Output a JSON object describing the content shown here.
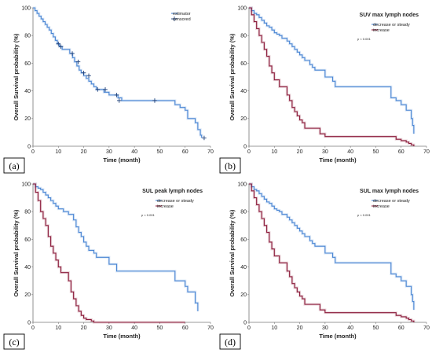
{
  "chart_data": [
    {
      "type": "line",
      "panel_label": "(a)",
      "title": "",
      "p_value": "",
      "xlabel": "Time (month)",
      "ylabel": "Overall Survival probability (%)",
      "xlim": [
        0,
        70
      ],
      "ylim": [
        0,
        100
      ],
      "xticks": [
        0,
        10,
        20,
        30,
        40,
        50,
        60,
        70
      ],
      "yticks": [
        0,
        20,
        40,
        60,
        80,
        100
      ],
      "legend": [
        "estimator",
        "censored"
      ],
      "legend_position": "top-right",
      "grid": false,
      "series": [
        {
          "name": "estimator",
          "color": "#4a86d4",
          "x": [
            0,
            0.8,
            1.6,
            2.4,
            3.2,
            4,
            4.8,
            5.6,
            6.4,
            7.2,
            8,
            8.8,
            9.6,
            10.4,
            11.5,
            14.5,
            15.6,
            16.4,
            17.3,
            18.2,
            19,
            20,
            21,
            22,
            23,
            24,
            25,
            26.5,
            28,
            30,
            33.5,
            35,
            55,
            56,
            58,
            60,
            61,
            63,
            64,
            65,
            66,
            66.5
          ],
          "y": [
            100,
            98,
            96,
            94,
            92,
            90,
            88,
            86,
            84,
            81.5,
            79,
            76.5,
            74,
            72,
            70,
            67,
            64,
            61,
            58,
            55,
            53,
            51,
            49,
            47,
            45,
            43,
            41,
            41,
            39,
            37,
            35,
            33,
            33,
            30,
            28,
            26,
            20,
            20,
            17,
            12,
            8,
            6
          ]
        }
      ],
      "censored": {
        "x": [
          10,
          11,
          15.5,
          17.8,
          20,
          22,
          25.5,
          28.5,
          33,
          34,
          48,
          67.5
        ],
        "y": [
          74,
          72,
          67,
          61,
          53,
          51,
          41,
          41,
          37,
          33,
          33,
          6
        ]
      }
    },
    {
      "type": "line",
      "panel_label": "(b)",
      "title": "SUV max lymph nodes",
      "p_value": "p < 0.001",
      "xlabel": "Time (month)",
      "ylabel": "Overall Survival probability (%)",
      "xlim": [
        0,
        70
      ],
      "ylim": [
        0,
        100
      ],
      "xticks": [
        0,
        10,
        20,
        30,
        40,
        50,
        60,
        70
      ],
      "yticks": [
        0,
        20,
        40,
        60,
        80,
        100
      ],
      "legend": [
        "decrease or steady",
        "increase"
      ],
      "legend_position": "top-right",
      "grid": false,
      "series": [
        {
          "name": "decrease or steady",
          "color": "#4a86d4",
          "x": [
            0,
            1,
            2,
            3,
            4,
            5,
            6,
            7,
            8,
            9,
            10,
            11,
            12,
            13,
            15,
            16,
            17,
            18,
            19,
            20,
            21,
            22,
            24,
            25,
            26,
            28,
            30,
            33,
            34,
            55,
            56,
            58,
            60,
            62,
            63,
            64,
            64.5,
            65
          ],
          "y": [
            100,
            98,
            96,
            95,
            93,
            91,
            89,
            87,
            86,
            84,
            82,
            81,
            80,
            78,
            76,
            74,
            72,
            70,
            68,
            66,
            64,
            62,
            59,
            57,
            55,
            55,
            50,
            47,
            43,
            43,
            35,
            33,
            30,
            26,
            26,
            20,
            15,
            9
          ]
        },
        {
          "name": "increase",
          "color": "#8b1a3a",
          "x": [
            0,
            1,
            2,
            3,
            4,
            5,
            6,
            7,
            8,
            9,
            10,
            11,
            12,
            13,
            15,
            16,
            17,
            18,
            19,
            20,
            21,
            22,
            24,
            28,
            30,
            56,
            58,
            60,
            62,
            63,
            64,
            65
          ],
          "y": [
            100,
            95,
            90,
            85,
            80,
            75,
            70,
            65,
            58,
            53,
            48,
            48,
            43,
            43,
            37,
            33,
            28,
            25,
            22,
            19,
            17,
            13,
            13,
            9,
            7,
            7,
            5,
            4,
            3,
            2,
            1,
            0
          ]
        }
      ],
      "censored": {
        "x": [],
        "y": []
      }
    },
    {
      "type": "line",
      "panel_label": "(c)",
      "title": "SUL peak lymph nodes",
      "p_value": "p < 0.001",
      "xlabel": "Time (month)",
      "ylabel": "Overall Survival probability (%)",
      "xlim": [
        0,
        70
      ],
      "ylim": [
        0,
        100
      ],
      "xticks": [
        0,
        10,
        20,
        30,
        40,
        50,
        60,
        70
      ],
      "yticks": [
        0,
        20,
        40,
        60,
        80,
        100
      ],
      "legend": [
        "decrease or steady",
        "increase"
      ],
      "legend_position": "top-right",
      "grid": false,
      "series": [
        {
          "name": "decrease or steady",
          "color": "#4a86d4",
          "x": [
            0,
            1,
            2,
            3,
            4,
            5,
            6,
            7,
            8,
            9,
            10,
            11,
            12,
            14,
            16,
            17,
            18,
            19,
            20,
            21,
            22,
            24,
            25,
            27,
            30,
            33,
            55,
            56,
            60,
            61,
            63,
            64,
            65
          ],
          "y": [
            100,
            98,
            97,
            96,
            94,
            92,
            90,
            88,
            86,
            84,
            82,
            82,
            80,
            78,
            74,
            69,
            65,
            62,
            58,
            55,
            52,
            50,
            47,
            47,
            42,
            37,
            37,
            30,
            26,
            22,
            22,
            14,
            8
          ]
        },
        {
          "name": "increase",
          "color": "#8b1a3a",
          "x": [
            0,
            1,
            2,
            3,
            4,
            5,
            6,
            7,
            8,
            9,
            10,
            11,
            12,
            13,
            14,
            15,
            16,
            17,
            18,
            19,
            20,
            21,
            22,
            23,
            24,
            30,
            33,
            56,
            60
          ],
          "y": [
            100,
            94,
            88,
            80,
            75,
            70,
            62,
            55,
            50,
            45,
            40,
            36,
            36,
            36,
            30,
            22,
            17,
            12,
            8,
            5,
            3,
            2,
            2,
            1,
            0,
            0,
            0,
            0,
            0
          ]
        }
      ],
      "censored": {
        "x": [],
        "y": []
      }
    },
    {
      "type": "line",
      "panel_label": "(d)",
      "title": "SUL max lymph nodes",
      "p_value": "p < 0.001",
      "xlabel": "Time (month)",
      "ylabel": "Overall Survival probability (%)",
      "xlim": [
        0,
        70
      ],
      "ylim": [
        0,
        100
      ],
      "xticks": [
        0,
        10,
        20,
        30,
        40,
        50,
        60,
        70
      ],
      "yticks": [
        0,
        20,
        40,
        60,
        80,
        100
      ],
      "legend": [
        "decrease or steady",
        "increase"
      ],
      "legend_position": "top-right",
      "grid": false,
      "series": [
        {
          "name": "decrease or steady",
          "color": "#4a86d4",
          "x": [
            0,
            1,
            2,
            3,
            4,
            5,
            6,
            7,
            8,
            9,
            10,
            11,
            12,
            13,
            15,
            16,
            17,
            18,
            19,
            20,
            21,
            22,
            24,
            25,
            26,
            28,
            30,
            33,
            34,
            55,
            56,
            58,
            60,
            62,
            63,
            64,
            64.5,
            65
          ],
          "y": [
            100,
            98,
            96,
            95,
            93,
            91,
            89,
            87,
            86,
            84,
            82,
            81,
            80,
            78,
            76,
            74,
            72,
            70,
            68,
            66,
            64,
            62,
            59,
            57,
            55,
            55,
            50,
            47,
            43,
            43,
            35,
            33,
            30,
            26,
            26,
            20,
            15,
            9
          ]
        },
        {
          "name": "increase",
          "color": "#8b1a3a",
          "x": [
            0,
            1,
            2,
            3,
            4,
            5,
            6,
            7,
            8,
            9,
            10,
            11,
            12,
            13,
            15,
            16,
            17,
            18,
            19,
            20,
            21,
            22,
            24,
            28,
            30,
            56,
            58,
            60,
            62,
            63,
            64,
            65
          ],
          "y": [
            100,
            95,
            90,
            85,
            80,
            75,
            70,
            65,
            58,
            53,
            48,
            48,
            43,
            43,
            37,
            33,
            28,
            25,
            22,
            19,
            17,
            13,
            13,
            9,
            7,
            7,
            5,
            4,
            3,
            2,
            1,
            0
          ]
        }
      ],
      "censored": {
        "x": [],
        "y": []
      }
    }
  ]
}
